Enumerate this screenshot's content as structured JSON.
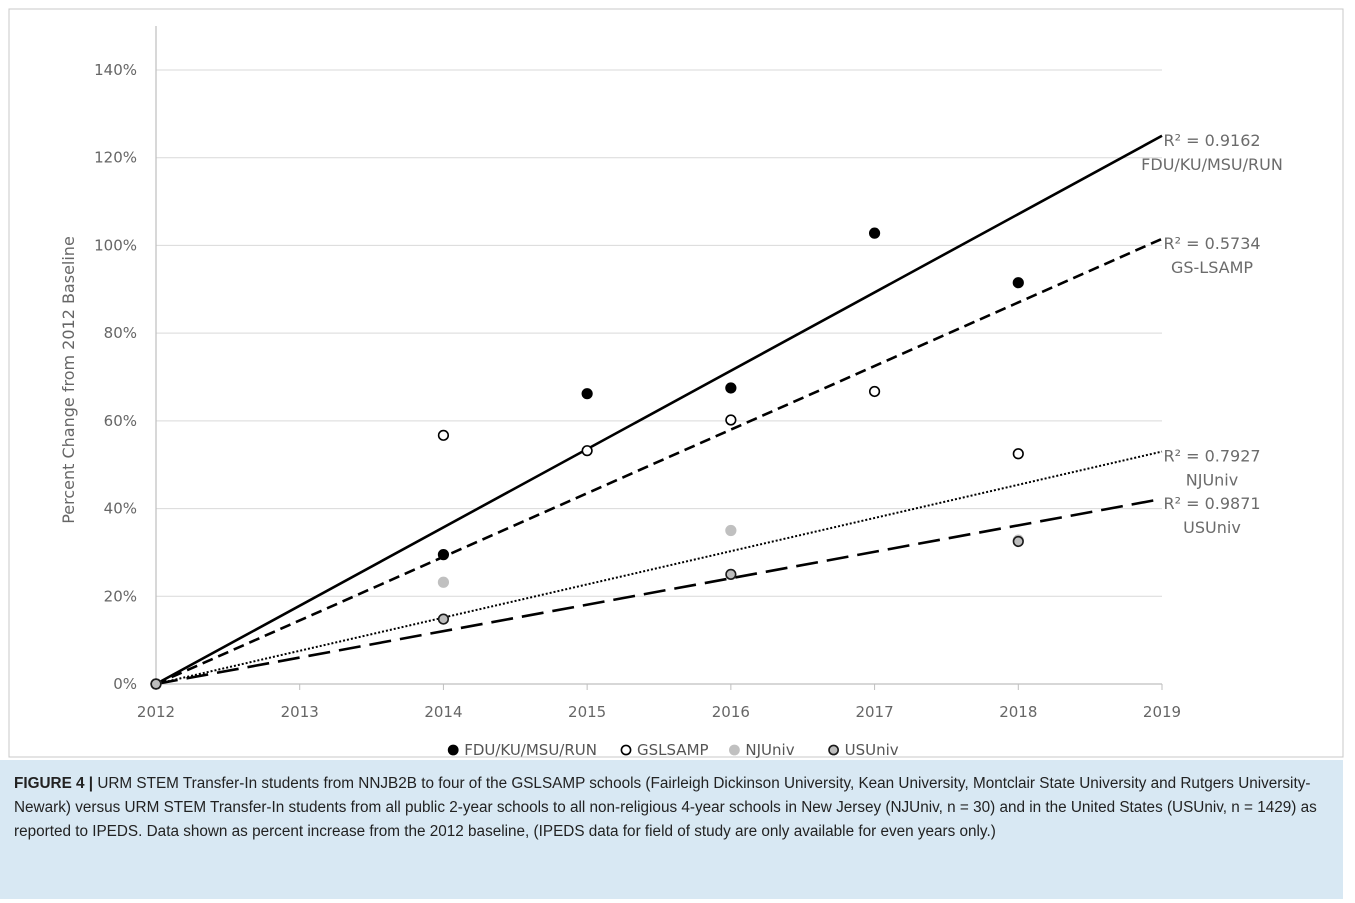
{
  "chart_data": {
    "type": "scatter",
    "title": "",
    "xlabel": "",
    "ylabel": "Percent Change from 2012 Baseline",
    "xlim": [
      2012,
      2019
    ],
    "ylim": [
      0,
      1.4
    ],
    "x_ticks": [
      "2012",
      "2013",
      "2014",
      "2015",
      "2016",
      "2017",
      "2018",
      "2019"
    ],
    "y_ticks": [
      "0%",
      "20%",
      "40%",
      "60%",
      "80%",
      "100%",
      "120%",
      "140%"
    ],
    "grid": true,
    "legend_position": "bottom",
    "series": [
      {
        "name": "FDU/KU/MSU/RUN",
        "marker": "filled-black",
        "x": [
          2012,
          2014,
          2015,
          2016,
          2017,
          2018
        ],
        "y": [
          0.0,
          0.295,
          0.662,
          0.675,
          1.028,
          0.915
        ],
        "trendline": {
          "style": "solid",
          "x": [
            2012,
            2019
          ],
          "y": [
            0.0,
            1.25
          ]
        },
        "r2_text": "R² = 0.9162",
        "line_label": "FDU/KU/MSU/RUN"
      },
      {
        "name": "GSLSAMP",
        "marker": "open",
        "x": [
          2012,
          2014,
          2015,
          2016,
          2017,
          2018
        ],
        "y": [
          0.0,
          0.567,
          0.532,
          0.602,
          0.667,
          0.525
        ],
        "trendline": {
          "style": "short-dash",
          "x": [
            2012,
            2019
          ],
          "y": [
            0.0,
            1.015
          ]
        },
        "r2_text": "R² = 0.5734",
        "line_label": "GS-LSAMP"
      },
      {
        "name": "NJUniv",
        "marker": "filled-gray",
        "x": [
          2012,
          2014,
          2016,
          2018
        ],
        "y": [
          0.0,
          0.232,
          0.35,
          0.328
        ],
        "trendline": {
          "style": "dotted",
          "x": [
            2012,
            2019
          ],
          "y": [
            0.0,
            0.53
          ]
        },
        "r2_text": "R² = 0.7927",
        "line_label": "NJUniv"
      },
      {
        "name": "USUniv",
        "marker": "open-gray-fill",
        "x": [
          2012,
          2014,
          2016,
          2018
        ],
        "y": [
          0.0,
          0.148,
          0.25,
          0.325
        ],
        "trendline": {
          "style": "long-dash",
          "x": [
            2012,
            2019
          ],
          "y": [
            0.0,
            0.422
          ]
        },
        "r2_text": "R² = 0.9871",
        "line_label": "USUniv"
      }
    ]
  },
  "caption": {
    "label": "FIGURE 4 |",
    "text": " URM STEM Transfer-In students from NNJB2B to four of the GSLSAMP schools (Fairleigh Dickinson University, Kean University, Montclair State University and Rutgers University-Newark) versus URM STEM Transfer-In students from all public 2-year schools to all non-religious 4-year schools in New Jersey (NJUniv, n = 30) and in the United States (USUniv, n = 1429) as reported to IPEDS. Data shown as percent increase from the 2012 baseline, (IPEDS data for field of study are only available for even years only.)"
  }
}
